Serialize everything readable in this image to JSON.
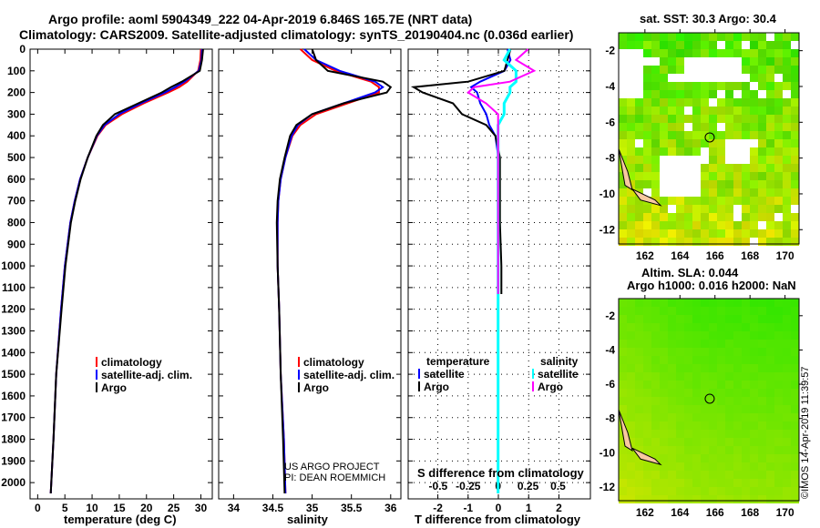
{
  "title_line1": "Argo profile: aoml 5904349_222 04-Apr-2019 6.846S 165.7E (NRT data)",
  "title_line2": "Climatology: CARS2009. Satellite-adjusted climatology: synTS_20190404.nc (0.036d earlier)",
  "colors": {
    "climatology": "#ff0000",
    "satellite": "#0000ff",
    "argo": "#000000",
    "sal_satellite": "#00ffff",
    "sal_argo": "#ff00ff"
  },
  "chart_data": [
    {
      "type": "line",
      "name": "temperature",
      "xlabel": "temperature (deg C)",
      "ylabel": "depth",
      "xlim": [
        -1.4,
        32.1
      ],
      "ylim": [
        2075,
        0
      ],
      "xticks": [
        0,
        5,
        10,
        15,
        20,
        25,
        30
      ],
      "yticks": [
        0,
        100,
        200,
        300,
        400,
        500,
        600,
        700,
        800,
        900,
        1000,
        1100,
        1200,
        1300,
        1400,
        1500,
        1600,
        1700,
        1800,
        1900,
        2000
      ],
      "depth": [
        0,
        50,
        100,
        150,
        175,
        200,
        250,
        300,
        350,
        400,
        500,
        600,
        700,
        800,
        1000,
        1200,
        1500,
        1800,
        2050
      ],
      "series": [
        {
          "name": "climatology",
          "values": [
            30.0,
            29.9,
            29.5,
            27.5,
            26.0,
            24.0,
            19.5,
            15.5,
            12.5,
            11.0,
            9.2,
            7.8,
            6.8,
            6.0,
            5.0,
            4.3,
            3.4,
            2.9,
            2.4
          ]
        },
        {
          "name": "satellite-adj. clim.",
          "values": [
            30.2,
            30.1,
            29.6,
            27.0,
            25.3,
            23.4,
            19.0,
            15.0,
            12.3,
            10.9,
            9.2,
            7.8,
            6.8,
            6.0,
            5.0,
            4.3,
            3.4,
            2.9,
            2.4
          ]
        },
        {
          "name": "Argo",
          "values": [
            30.4,
            30.2,
            29.8,
            26.5,
            24.5,
            22.8,
            18.5,
            14.2,
            12.0,
            10.8,
            9.2,
            7.9,
            6.9,
            6.1,
            5.1,
            4.4,
            3.4,
            2.9,
            2.4
          ]
        }
      ],
      "legend": [
        "climatology",
        "satellite-adj. clim.",
        "Argo"
      ]
    },
    {
      "type": "line",
      "name": "salinity",
      "xlabel": "salinity",
      "xlim": [
        33.81,
        36.13
      ],
      "ylim": [
        2075,
        0
      ],
      "xticks": [
        34,
        34.5,
        35,
        35.5,
        36
      ],
      "depth": [
        0,
        50,
        100,
        150,
        175,
        200,
        250,
        300,
        350,
        400,
        500,
        600,
        700,
        800,
        1000,
        1200,
        1500,
        1800,
        2050
      ],
      "series": [
        {
          "name": "climatology",
          "values": [
            34.85,
            35.0,
            35.3,
            35.75,
            35.85,
            35.85,
            35.45,
            35.05,
            34.85,
            34.75,
            34.66,
            34.6,
            34.57,
            34.56,
            34.56,
            34.58,
            34.6,
            34.64,
            34.66
          ]
        },
        {
          "name": "satellite-adj. clim.",
          "values": [
            34.9,
            35.05,
            35.35,
            35.8,
            35.9,
            35.8,
            35.4,
            35.0,
            34.82,
            34.74,
            34.66,
            34.6,
            34.57,
            34.56,
            34.56,
            34.58,
            34.6,
            34.64,
            34.66
          ]
        },
        {
          "name": "Argo",
          "values": [
            35.0,
            35.05,
            35.2,
            35.9,
            36.0,
            35.95,
            35.4,
            35.0,
            34.8,
            34.72,
            34.65,
            34.59,
            34.56,
            34.55,
            34.56,
            34.58,
            34.6,
            34.63,
            34.65
          ]
        }
      ],
      "legend": [
        "climatology",
        "satellite-adj. clim.",
        "Argo"
      ],
      "annotation": [
        "US ARGO PROJECT",
        "PI: DEAN ROEMMICH"
      ]
    },
    {
      "type": "line",
      "name": "difference",
      "xlabel": "T difference from climatology",
      "x2label": "S difference from climatology",
      "xlim": [
        -2.98,
        3.04
      ],
      "x2lim": [
        -0.75,
        0.77
      ],
      "ylim": [
        2075,
        0
      ],
      "xticks": [
        -2,
        -1,
        0,
        1,
        2
      ],
      "x2ticks": [
        "-0.5",
        "-0.25",
        "0",
        "0.25",
        "0.5"
      ],
      "x2tickvals": [
        -0.5,
        -0.25,
        0,
        0.25,
        0.5
      ],
      "depth": [
        0,
        50,
        100,
        150,
        175,
        200,
        250,
        300,
        350,
        400,
        500,
        600,
        700,
        800,
        1000,
        1130,
        1500,
        1800,
        2050
      ],
      "series": [
        {
          "name": "temperature satellite",
          "axis": "T",
          "values": [
            0.3,
            0.4,
            0.2,
            -0.6,
            -0.9,
            -0.7,
            -0.6,
            -0.4,
            -0.3,
            -0.1,
            0,
            0,
            0,
            0,
            0,
            0,
            0,
            0,
            0
          ]
        },
        {
          "name": "temperature Argo",
          "axis": "T",
          "values": [
            0.4,
            0.3,
            0.2,
            -1.0,
            -2.8,
            -2.5,
            -1.5,
            -1.2,
            -0.4,
            -0.1,
            0.05,
            0.05,
            0.05,
            0.05,
            0.1,
            0.1,
            null,
            null,
            null
          ]
        },
        {
          "name": "salinity satellite",
          "axis": "S",
          "values": [
            0.1,
            0.05,
            0.15,
            0.15,
            0.1,
            0.1,
            0.05,
            0.05,
            0,
            0,
            0,
            0,
            0,
            0,
            0,
            0,
            0,
            0,
            0
          ]
        },
        {
          "name": "salinity Argo",
          "axis": "S",
          "values": [
            0.25,
            0.15,
            0.3,
            0.1,
            -0.2,
            -0.25,
            -0.1,
            0,
            0,
            0,
            0,
            0,
            0,
            0,
            0,
            0,
            null,
            null,
            null
          ]
        }
      ],
      "legend_t": {
        "title": "temperature",
        "items": [
          "satellite",
          "Argo"
        ]
      },
      "legend_s": {
        "title": "salinity",
        "items": [
          "satellite",
          "Argo"
        ]
      }
    }
  ],
  "map_sst": {
    "title": "sat. SST: 30.3 Argo: 30.4",
    "xticks": [
      "162",
      "164",
      "166",
      "168",
      "170"
    ],
    "yticks": [
      "-2",
      "-4",
      "-6",
      "-8",
      "-10",
      "-12"
    ],
    "float_lon": 165.7,
    "float_lat": -6.846
  },
  "map_sla": {
    "title1": "Altim. SLA: 0.044",
    "title2": "Argo h1000: 0.016 h2000: NaN",
    "xticks": [
      "162",
      "164",
      "166",
      "168",
      "170"
    ],
    "yticks": [
      "-2",
      "-4",
      "-6",
      "-8",
      "-10",
      "-12"
    ]
  },
  "credit": "©IMOS 14-Apr-2019 11:39:57"
}
